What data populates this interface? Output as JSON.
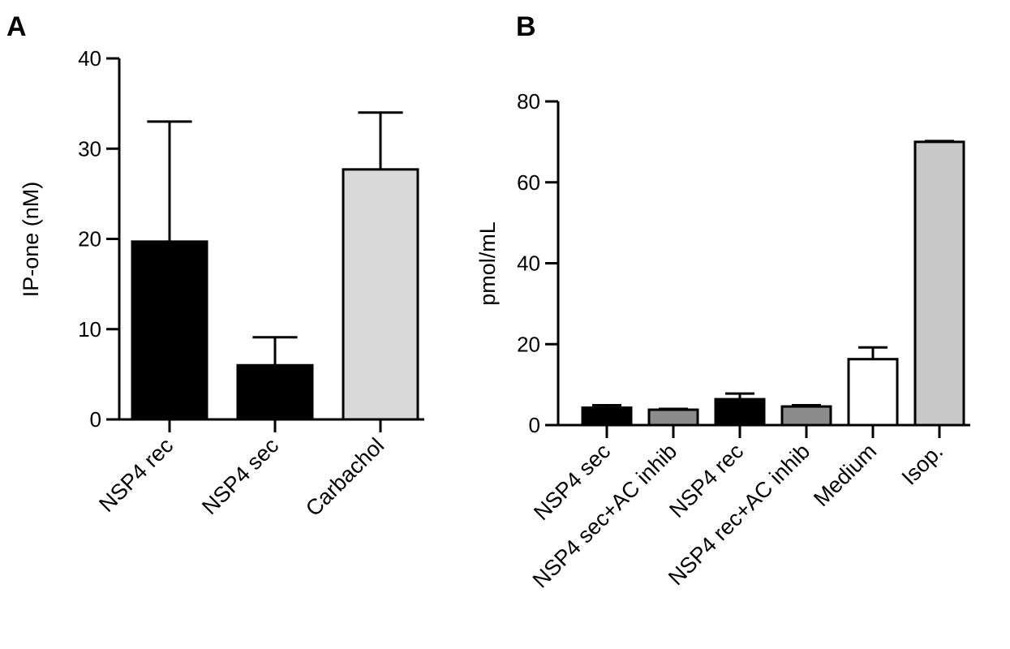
{
  "chart_data": [
    {
      "panel": "A",
      "type": "bar",
      "ylabel": "IP-one (nM)",
      "ylim": [
        0,
        40
      ],
      "yticks": [
        "0",
        "10",
        "20",
        "30",
        "40"
      ],
      "categories": [
        "NSP4 rec",
        "NSP4 sec",
        "Carbachol"
      ],
      "values": [
        19.7,
        6.0,
        27.7
      ],
      "errors": [
        13.3,
        3.1,
        6.3
      ],
      "colors": [
        "#000000",
        "#000000",
        "#d9d9d9"
      ],
      "grid": false,
      "legend": "none"
    },
    {
      "panel": "B",
      "type": "bar",
      "ylabel": "pmol/mL",
      "ylim": [
        0,
        80
      ],
      "yticks": [
        "0",
        "20",
        "40",
        "60",
        "80"
      ],
      "categories": [
        "NSP4 sec",
        "NSP4 sec+AC inhib",
        "NSP4 rec",
        "NSP4 rec+AC inhib",
        "Medium",
        "Isop."
      ],
      "values": [
        4.3,
        3.8,
        6.4,
        4.6,
        16.3,
        70.0
      ],
      "errors": [
        0.6,
        0.2,
        1.4,
        0.3,
        2.9,
        0.2
      ],
      "colors": [
        "#000000",
        "#8c8c8c",
        "#000000",
        "#8c8c8c",
        "#ffffff",
        "#c8c8c8"
      ],
      "grid": false,
      "legend": "none"
    }
  ]
}
